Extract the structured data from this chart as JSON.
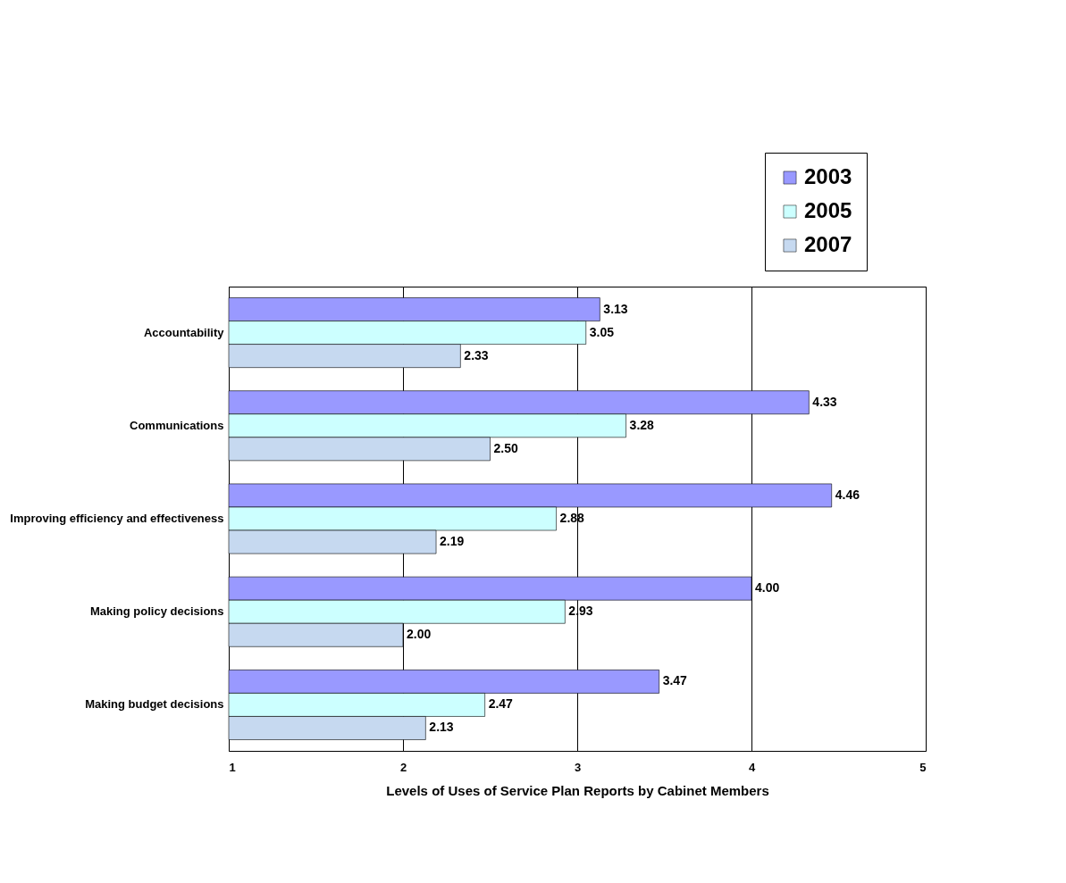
{
  "chart_data": {
    "type": "bar",
    "orientation": "horizontal",
    "xlabel": "Levels of Uses of Service Plan Reports by Cabinet Members",
    "categories": [
      "Accountability",
      "Communications",
      "Improving efficiency and effectiveness",
      "Making policy decisions",
      "Making budget decisions"
    ],
    "series": [
      {
        "name": "2003",
        "color": "#9999ff",
        "values": [
          3.13,
          4.33,
          4.46,
          4.0,
          3.47
        ]
      },
      {
        "name": "2005",
        "color": "#ccffff",
        "values": [
          3.05,
          3.28,
          2.88,
          2.93,
          2.47
        ]
      },
      {
        "name": "2007",
        "color": "#c6d9f0",
        "values": [
          2.33,
          2.5,
          2.19,
          2.0,
          2.13
        ]
      }
    ],
    "value_labels": [
      [
        "3.13",
        "4.33",
        "4.46",
        "4.00",
        "3.47"
      ],
      [
        "3.05",
        "3.28",
        "2.88",
        "2.93",
        "2.47"
      ],
      [
        "2.33",
        "2.50",
        "2.19",
        "2.00",
        "2.13"
      ]
    ],
    "xlim": [
      1,
      5
    ],
    "xticks": [
      1,
      2,
      3,
      4,
      5
    ],
    "grid": "x",
    "legend": "top right"
  }
}
